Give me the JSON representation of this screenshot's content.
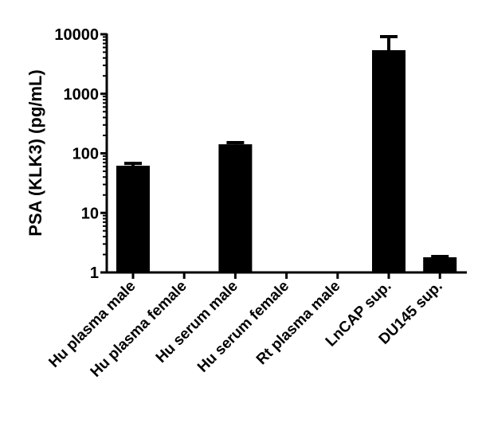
{
  "chart_data": {
    "type": "bar",
    "title": "",
    "xlabel": "",
    "ylabel": "PSA (KLK3) (pg/mL)",
    "yscale": "log",
    "ylim": [
      1,
      10000
    ],
    "yticks": [
      1,
      10,
      100,
      1000,
      10000
    ],
    "ytick_labels": [
      "1",
      "10",
      "100",
      "1000",
      "10000"
    ],
    "grid": false,
    "legend": null,
    "categories": [
      "Hu plasma male",
      "Hu plasma female",
      "Hu serum male",
      "Hu serum female",
      "Rt plasma male",
      "LnCAP sup.",
      "DU145 sup."
    ],
    "values": [
      62,
      null,
      142,
      null,
      null,
      5400,
      1.8
    ],
    "error_upper": [
      72,
      null,
      161,
      null,
      null,
      9700,
      1.97
    ],
    "bar_color": "#000000"
  },
  "colors": {
    "bar": "#000000",
    "axis": "#000000",
    "background": "#ffffff"
  }
}
